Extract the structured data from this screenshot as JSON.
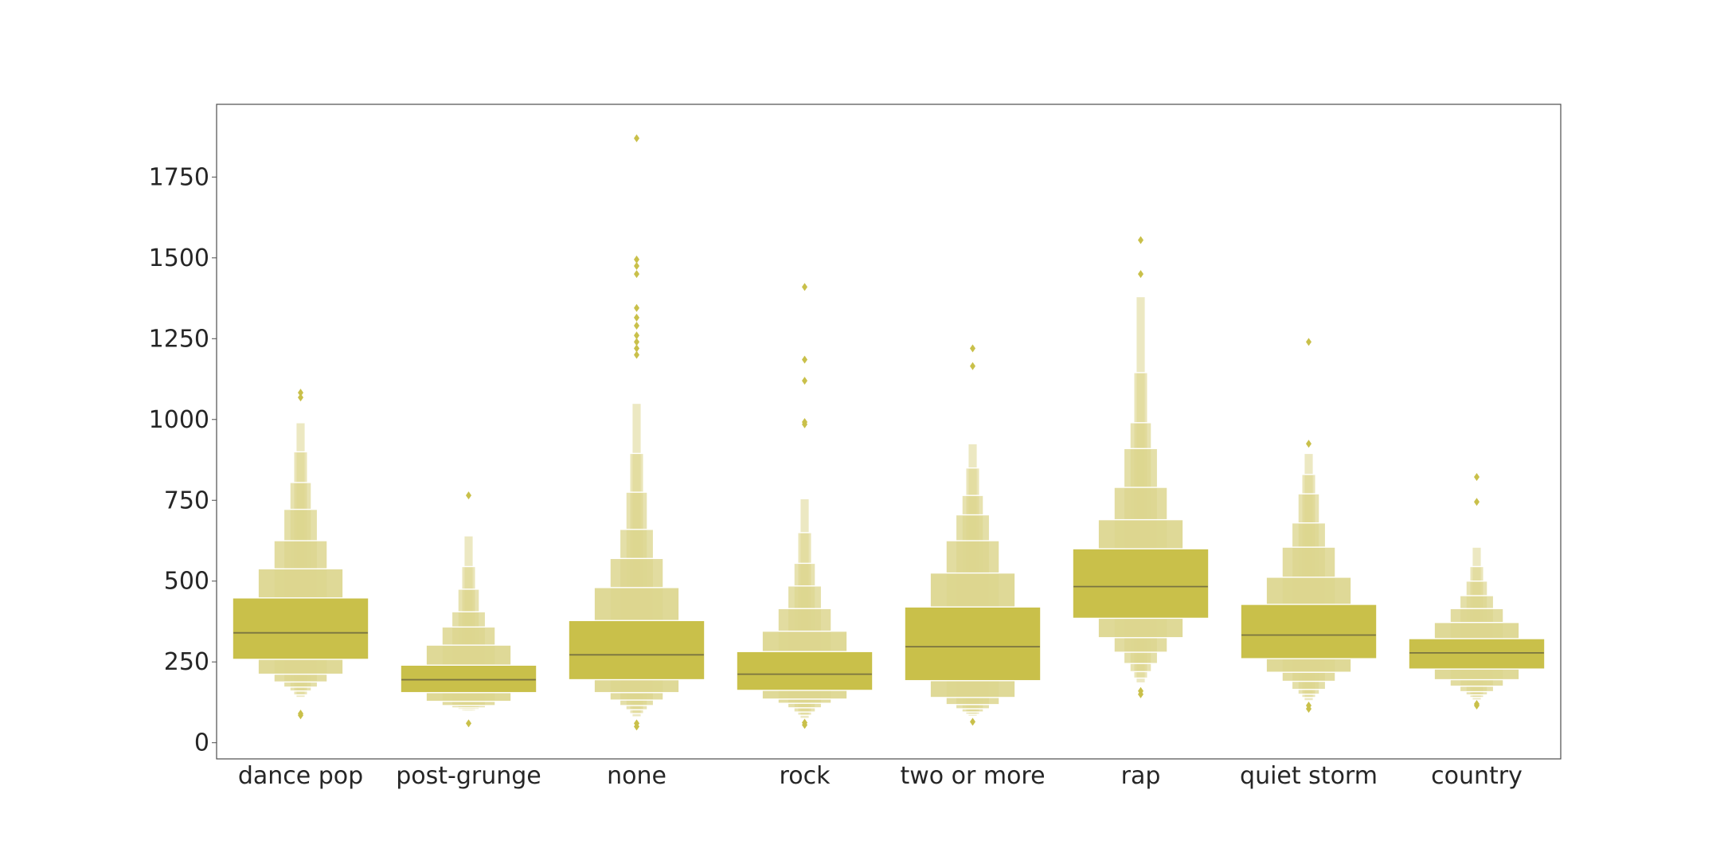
{
  "chart_data": {
    "type": "boxen",
    "categories": [
      "dance pop",
      "post-grunge",
      "none",
      "rock",
      "two or more",
      "rap",
      "quiet storm",
      "country"
    ],
    "ylim": [
      -50,
      1975
    ],
    "yticks": [
      0,
      250,
      500,
      750,
      1000,
      1250,
      1500,
      1750
    ],
    "grid": false,
    "color": "#c9c04a",
    "light_color": "#ddd68f",
    "median_color": "#7a7440",
    "groups": [
      {
        "name": "dance pop",
        "median": 340,
        "levels": [
          [
            258,
            448
          ],
          [
            212,
            538
          ],
          [
            188,
            625
          ],
          [
            172,
            722
          ],
          [
            160,
            805
          ],
          [
            148,
            900
          ],
          [
            140,
            990
          ]
        ],
        "outliers": [
          85,
          90,
          1068,
          1083
        ]
      },
      {
        "name": "post-grunge",
        "median": 195,
        "levels": [
          [
            155,
            240
          ],
          [
            128,
            302
          ],
          [
            115,
            358
          ],
          [
            108,
            405
          ],
          [
            103,
            475
          ],
          [
            98,
            545
          ],
          [
            95,
            640
          ]
        ],
        "outliers": [
          60,
          765
        ]
      },
      {
        "name": "none",
        "median": 272,
        "levels": [
          [
            195,
            378
          ],
          [
            155,
            480
          ],
          [
            132,
            570
          ],
          [
            115,
            660
          ],
          [
            102,
            775
          ],
          [
            90,
            895
          ],
          [
            80,
            1050
          ]
        ],
        "outliers": [
          50,
          60,
          1200,
          1220,
          1240,
          1260,
          1290,
          1315,
          1345,
          1450,
          1475,
          1495,
          1870
        ]
      },
      {
        "name": "rock",
        "median": 212,
        "levels": [
          [
            162,
            282
          ],
          [
            135,
            345
          ],
          [
            122,
            415
          ],
          [
            108,
            485
          ],
          [
            95,
            555
          ],
          [
            85,
            650
          ],
          [
            75,
            755
          ]
        ],
        "outliers": [
          55,
          62,
          985,
          992,
          1120,
          1185,
          1410
        ]
      },
      {
        "name": "two or more",
        "median": 297,
        "levels": [
          [
            192,
            420
          ],
          [
            140,
            525
          ],
          [
            118,
            625
          ],
          [
            105,
            705
          ],
          [
            95,
            765
          ],
          [
            88,
            850
          ],
          [
            82,
            925
          ]
        ],
        "outliers": [
          65,
          1165,
          1220
        ]
      },
      {
        "name": "rap",
        "median": 483,
        "levels": [
          [
            385,
            600
          ],
          [
            325,
            690
          ],
          [
            280,
            790
          ],
          [
            245,
            910
          ],
          [
            220,
            990
          ],
          [
            200,
            1145
          ],
          [
            185,
            1380
          ]
        ],
        "outliers": [
          150,
          160,
          1450,
          1555
        ]
      },
      {
        "name": "quiet storm",
        "median": 333,
        "levels": [
          [
            260,
            428
          ],
          [
            218,
            512
          ],
          [
            190,
            605
          ],
          [
            165,
            680
          ],
          [
            150,
            770
          ],
          [
            140,
            830
          ],
          [
            130,
            895
          ]
        ],
        "outliers": [
          105,
          115,
          925,
          1240
        ]
      },
      {
        "name": "country",
        "median": 278,
        "levels": [
          [
            228,
            322
          ],
          [
            195,
            372
          ],
          [
            175,
            415
          ],
          [
            158,
            455
          ],
          [
            148,
            500
          ],
          [
            140,
            545
          ],
          [
            132,
            605
          ]
        ],
        "outliers": [
          115,
          120,
          745,
          822
        ]
      }
    ]
  }
}
